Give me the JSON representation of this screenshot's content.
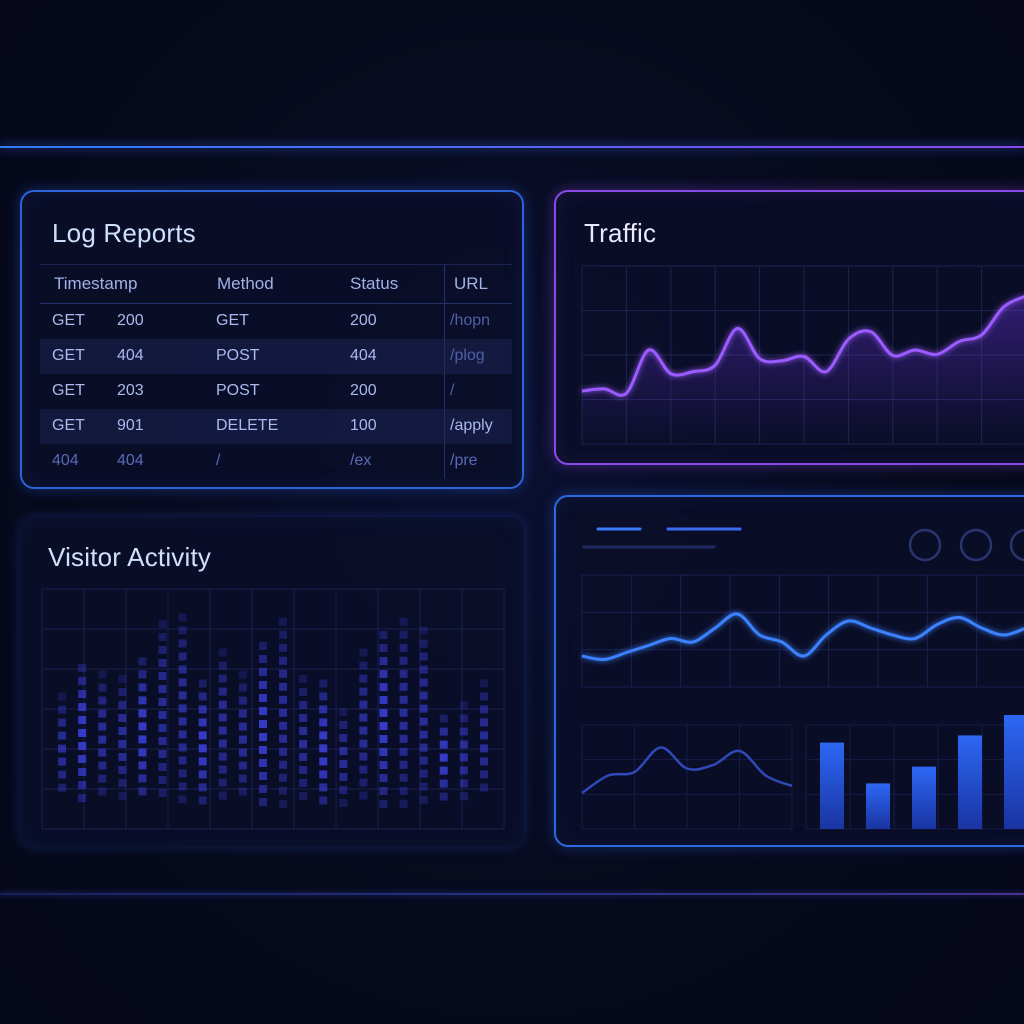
{
  "log_reports": {
    "title": "Log Reports",
    "columns": [
      "Timestamp",
      "Method",
      "Status",
      "URL"
    ],
    "rows": [
      {
        "c1": "GET",
        "c2": "200",
        "c3": "GET",
        "c4": "200",
        "c5": "/hopn"
      },
      {
        "c1": "GET",
        "c2": "404",
        "c3": "POST",
        "c4": "404",
        "c5": "/plog"
      },
      {
        "c1": "GET",
        "c2": "203",
        "c3": "POST",
        "c4": "200",
        "c5": "/"
      },
      {
        "c1": "GET",
        "c2": "901",
        "c3": "DELETE",
        "c4": "100",
        "c5": "/apply"
      },
      {
        "c1": "404",
        "c2": "404",
        "c3": "/",
        "c4": "/ex",
        "c5": "/pre"
      }
    ]
  },
  "traffic": {
    "title": "Traffic",
    "accent": "#9b5cff",
    "series": [
      0.12,
      0.14,
      0.1,
      0.5,
      0.28,
      0.3,
      0.36,
      0.7,
      0.42,
      0.4,
      0.44,
      0.3,
      0.6,
      0.67,
      0.45,
      0.5,
      0.46,
      0.58,
      0.64,
      0.9,
      1.0
    ]
  },
  "visitor_activity": {
    "title": "Visitor Activity",
    "accent": "#3a3fd8",
    "columns": [
      {
        "bottom": 0.35,
        "top": 0.62
      },
      {
        "bottom": 0.3,
        "top": 0.75
      },
      {
        "bottom": 0.32,
        "top": 0.72
      },
      {
        "bottom": 0.38,
        "top": 0.7
      },
      {
        "bottom": 0.28,
        "top": 0.78
      },
      {
        "bottom": 0.25,
        "top": 0.95
      },
      {
        "bottom": 0.22,
        "top": 0.98
      },
      {
        "bottom": 0.26,
        "top": 0.68
      },
      {
        "bottom": 0.3,
        "top": 0.82
      },
      {
        "bottom": 0.32,
        "top": 0.72
      },
      {
        "bottom": 0.2,
        "top": 0.85
      },
      {
        "bottom": 0.22,
        "top": 0.96
      },
      {
        "bottom": 0.3,
        "top": 0.7
      },
      {
        "bottom": 0.18,
        "top": 0.68
      },
      {
        "bottom": 0.28,
        "top": 0.55
      },
      {
        "bottom": 0.32,
        "top": 0.82
      },
      {
        "bottom": 0.24,
        "top": 0.9
      },
      {
        "bottom": 0.2,
        "top": 0.96
      },
      {
        "bottom": 0.26,
        "top": 0.92
      },
      {
        "bottom": 0.34,
        "top": 0.52
      },
      {
        "bottom": 0.3,
        "top": 0.58
      },
      {
        "bottom": 0.36,
        "top": 0.68
      }
    ]
  },
  "overview": {
    "accent": "#3b82ff",
    "wave_series": [
      0.3,
      0.25,
      0.35,
      0.45,
      0.55,
      0.5,
      0.7,
      0.9,
      0.6,
      0.5,
      0.3,
      0.6,
      0.8,
      0.7,
      0.6,
      0.55,
      0.75,
      0.85,
      0.7,
      0.6,
      0.7
    ],
    "small_series": [
      0.2,
      0.45,
      0.5,
      0.85,
      0.55,
      0.6,
      0.8,
      0.45,
      0.3
    ],
    "bars": [
      0.72,
      0.38,
      0.52,
      0.78,
      0.95
    ]
  }
}
